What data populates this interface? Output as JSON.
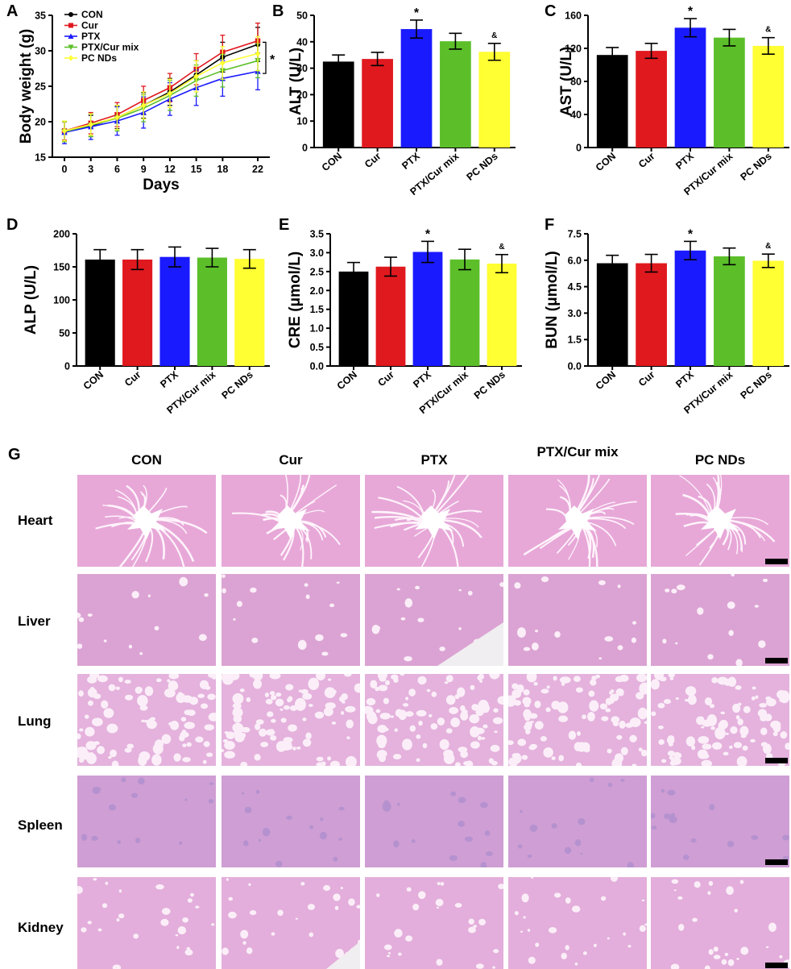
{
  "colors": {
    "CON": "#000000",
    "Cur": "#e0191f",
    "PTX": "#1a1aff",
    "PTX/Cur mix": "#5cbf2a",
    "PC NDs": "#ffff33"
  },
  "chart_data": [
    {
      "panel": "A",
      "type": "line",
      "xlabel": "Days",
      "ylabel": "Body weight (g)",
      "x": [
        0,
        3,
        6,
        9,
        12,
        15,
        18,
        22
      ],
      "ylim": [
        15,
        35
      ],
      "yticks": [
        "15",
        "20",
        "25",
        "30",
        "35"
      ],
      "xticks": [
        "0",
        "3",
        "6",
        "9",
        "12",
        "15",
        "18",
        "22"
      ],
      "significance": "*",
      "series": [
        {
          "name": "CON",
          "marker": "circle",
          "values": [
            18.6,
            19.4,
            20.6,
            22.3,
            24.2,
            26.6,
            29.1,
            30.9
          ],
          "errors": [
            1.4,
            1.5,
            1.6,
            1.8,
            1.9,
            2.0,
            2.1,
            2.4
          ]
        },
        {
          "name": "Cur",
          "marker": "square",
          "values": [
            18.7,
            19.8,
            21.0,
            23.0,
            24.8,
            27.4,
            29.8,
            31.4
          ],
          "errors": [
            1.3,
            1.5,
            1.7,
            2.0,
            2.0,
            2.2,
            2.4,
            2.5
          ]
        },
        {
          "name": "PTX",
          "marker": "triangle",
          "values": [
            18.5,
            19.3,
            20.1,
            21.3,
            23.2,
            24.8,
            26.1,
            27.1
          ],
          "errors": [
            1.6,
            1.8,
            2.0,
            2.2,
            2.3,
            2.5,
            2.5,
            2.6
          ]
        },
        {
          "name": "PTX/Cur mix",
          "marker": "triangle-down",
          "values": [
            18.6,
            19.5,
            20.5,
            21.9,
            23.7,
            25.8,
            27.2,
            28.6
          ],
          "errors": [
            1.4,
            1.6,
            1.8,
            1.9,
            2.1,
            2.2,
            2.3,
            2.4
          ]
        },
        {
          "name": "PC NDs",
          "marker": "diamond",
          "values": [
            18.7,
            19.6,
            20.6,
            22.3,
            24.0,
            26.4,
            28.3,
            29.6
          ],
          "errors": [
            1.4,
            1.5,
            1.7,
            1.9,
            2.0,
            2.2,
            2.3,
            2.4
          ]
        }
      ]
    },
    {
      "panel": "B",
      "type": "bar",
      "ylabel": "ALT (U/L)",
      "ylim": [
        0,
        50
      ],
      "yticks": [
        "0",
        "10",
        "20",
        "30",
        "40",
        "50"
      ],
      "categories": [
        "CON",
        "Cur",
        "PTX",
        "PTX/Cur mix",
        "PC NDs"
      ],
      "values": [
        32.5,
        33.5,
        44.8,
        40.2,
        36.2
      ],
      "errors": [
        2.5,
        2.5,
        3.4,
        3.0,
        3.2
      ],
      "annotations": [
        "",
        "",
        "*",
        "",
        "&"
      ]
    },
    {
      "panel": "C",
      "type": "bar",
      "ylabel": "AST (U/L)",
      "ylim": [
        0,
        160
      ],
      "yticks": [
        "0",
        "40",
        "80",
        "120",
        "160"
      ],
      "categories": [
        "CON",
        "Cur",
        "PTX",
        "PTX/Cur mix",
        "PC NDs"
      ],
      "values": [
        112,
        117,
        145,
        133,
        123
      ],
      "errors": [
        9,
        9,
        11,
        10,
        10
      ],
      "annotations": [
        "",
        "",
        "*",
        "",
        "&"
      ]
    },
    {
      "panel": "D",
      "type": "bar",
      "ylabel": "ALP (U/L)",
      "ylim": [
        0,
        200
      ],
      "yticks": [
        "0",
        "50",
        "100",
        "150",
        "200"
      ],
      "categories": [
        "CON",
        "Cur",
        "PTX",
        "PTX/Cur mix",
        "PC NDs"
      ],
      "values": [
        161,
        161,
        165,
        164,
        162
      ],
      "errors": [
        15,
        15,
        15,
        14,
        14
      ],
      "annotations": [
        "",
        "",
        "",
        "",
        ""
      ]
    },
    {
      "panel": "E",
      "type": "bar",
      "ylabel": "CRE (μmol/L)",
      "ylim": [
        0,
        3.5
      ],
      "yticks": [
        "0.0",
        "0.5",
        "1.0",
        "1.5",
        "2.0",
        "2.5",
        "3.0",
        "3.5"
      ],
      "categories": [
        "CON",
        "Cur",
        "PTX",
        "PTX/Cur mix",
        "PC NDs"
      ],
      "values": [
        2.5,
        2.63,
        3.02,
        2.82,
        2.71
      ],
      "errors": [
        0.24,
        0.25,
        0.28,
        0.27,
        0.24
      ],
      "annotations": [
        "",
        "",
        "*",
        "",
        "&"
      ]
    },
    {
      "panel": "F",
      "type": "bar",
      "ylabel": "BUN (μmol/L)",
      "ylim": [
        0,
        7.5
      ],
      "yticks": [
        "0.0",
        "1.5",
        "3.0",
        "4.5",
        "6.0",
        "7.5"
      ],
      "categories": [
        "CON",
        "Cur",
        "PTX",
        "PTX/Cur mix",
        "PC NDs"
      ],
      "values": [
        5.83,
        5.83,
        6.55,
        6.22,
        5.97
      ],
      "errors": [
        0.45,
        0.5,
        0.52,
        0.47,
        0.38
      ],
      "annotations": [
        "",
        "",
        "*",
        "",
        "&"
      ]
    }
  ],
  "panelG": {
    "letter": "G",
    "columns": [
      "CON",
      "Cur",
      "PTX",
      "PTX/Cur mix",
      "PC NDs"
    ],
    "rows": [
      "Heart",
      "Liver",
      "Lung",
      "Spleen",
      "Kidney"
    ]
  }
}
